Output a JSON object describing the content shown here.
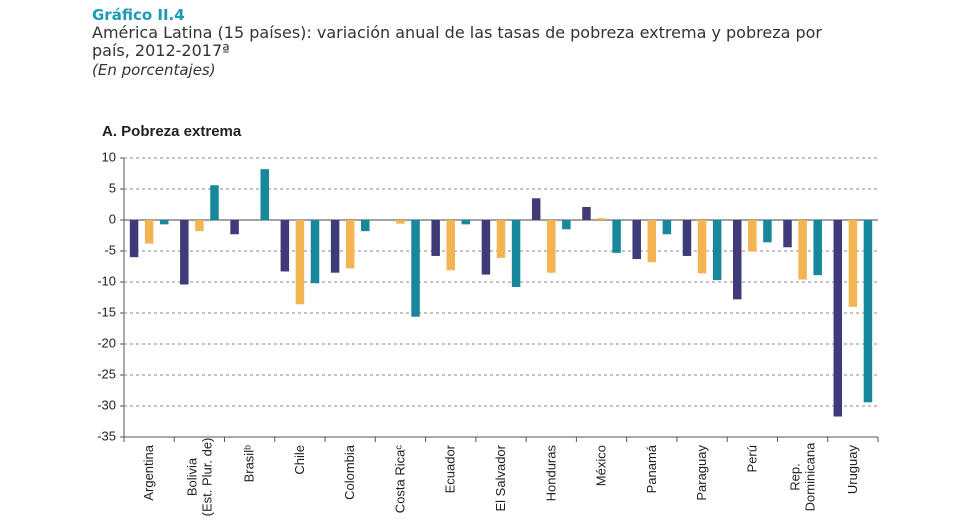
{
  "chart_data": {
    "type": "bar",
    "label": "Gráfico II.4",
    "title": "América Latina (15 países): variación anual de las tasas de pobreza extrema y pobreza por país, 2012-2017ª",
    "subtitle": "(En porcentajes)",
    "panel_title": "A. Pobreza extrema",
    "categories": [
      "Argentina",
      "Bolivia\n(Est. Plur. de)",
      "Brasilᵇ",
      "Chile",
      "Colombia",
      "Costa Ricaᶜ",
      "Ecuador",
      "El Salvador",
      "Honduras",
      "México",
      "Panamá",
      "Paraguay",
      "Perú",
      "Rep.\nDominicana",
      "Uruguay"
    ],
    "series": [
      {
        "color": "#3e3b78",
        "values": [
          -6.0,
          -10.4,
          -2.3,
          -8.3,
          -8.5,
          0,
          -5.8,
          -8.8,
          3.5,
          2.1,
          -6.3,
          -5.8,
          -12.8,
          -4.4,
          -31.7
        ]
      },
      {
        "color": "#f2b552",
        "values": [
          -3.8,
          -1.8,
          0,
          -13.6,
          -7.8,
          -0.6,
          -8.1,
          -6.1,
          -8.5,
          0.3,
          -6.8,
          -8.6,
          -5.1,
          -9.6,
          -14.0
        ]
      },
      {
        "color": "#17879c",
        "values": [
          -0.7,
          5.6,
          8.2,
          -10.2,
          -1.8,
          -15.6,
          -0.7,
          -10.8,
          -1.5,
          -5.3,
          -2.3,
          -9.7,
          -3.6,
          -8.9,
          -29.4
        ]
      }
    ],
    "ylim": [
      -35,
      10
    ],
    "yticks": [
      10,
      5,
      0,
      -5,
      -10,
      -15,
      -20,
      -25,
      -30,
      -35
    ],
    "grid": true
  }
}
